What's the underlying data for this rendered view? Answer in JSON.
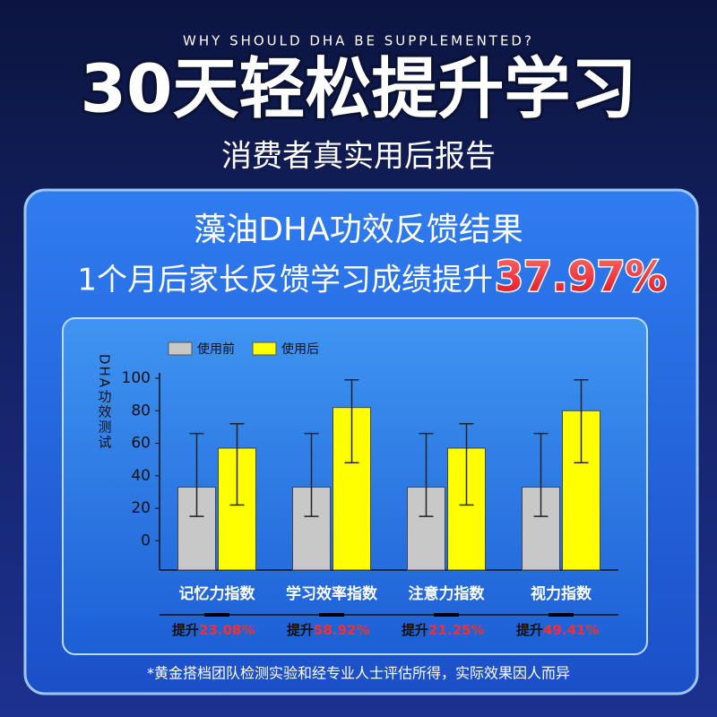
{
  "header": {
    "kicker": "WHY SHOULD DHA BE SUPPLEMENTED?",
    "title": "30天轻松提升学习",
    "subtitle": "消费者真实用后报告"
  },
  "panel": {
    "title": "藻油DHA功效反馈结果",
    "headline": "1个月后家长反馈学习成绩提升",
    "highlight": "37.97%"
  },
  "chart_data": {
    "type": "bar",
    "ylabel": "DHA功效测试",
    "categories": [
      "记忆力指数",
      "学习效率指数",
      "注意力指数",
      "视力指数"
    ],
    "series": [
      {
        "name": "使用前",
        "color": "#c8c8c8",
        "values": [
          33,
          33,
          33,
          33
        ],
        "error_range": [
          [
            15,
            66
          ],
          [
            15,
            66
          ],
          [
            15,
            66
          ],
          [
            15,
            66
          ]
        ]
      },
      {
        "name": "使用后",
        "color": "#ffff00",
        "values": [
          57,
          82,
          57,
          80
        ],
        "error_range": [
          [
            22,
            72
          ],
          [
            48,
            99
          ],
          [
            22,
            72
          ],
          [
            48,
            99
          ]
        ]
      }
    ],
    "ylim": [
      -18,
      100
    ],
    "yticks": [
      0,
      20,
      40,
      60,
      80,
      100
    ],
    "grid": false,
    "legend": "top",
    "improvement": {
      "label": "提升",
      "values": [
        23.08,
        58.92,
        21.25,
        49.41
      ],
      "value_labels": [
        "23.08%",
        "58.92%",
        "21.25%",
        "49.41%"
      ]
    }
  },
  "footnote": "*黄金搭档团队检测实验和经专业人士评估所得，实际效果因人而异"
}
